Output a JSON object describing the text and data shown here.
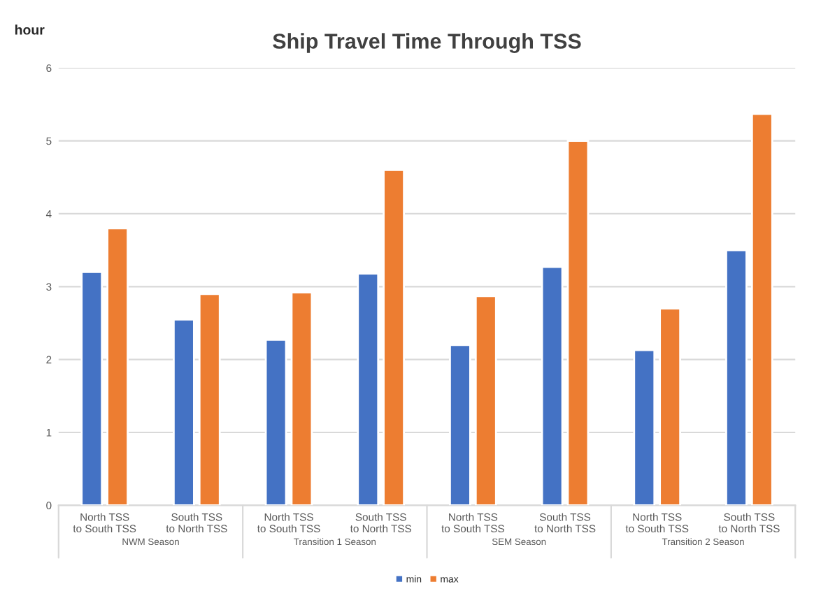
{
  "chart_data": {
    "type": "bar",
    "title": "Ship Travel Time Through TSS",
    "ylabel": "hour",
    "categories": [
      "North TSS to South TSS",
      "South TSS to North TSS",
      "North TSS to South TSS",
      "South TSS to North TSS",
      "North TSS to South TSS",
      "South TSS to North TSS",
      "North TSS to South TSS",
      "South TSS to North TSS"
    ],
    "series": [
      {
        "name": "min",
        "color": "#4472c4",
        "values": [
          3.2,
          2.55,
          2.27,
          3.18,
          2.2,
          3.27,
          2.13,
          3.5
        ]
      },
      {
        "name": "max",
        "color": "#ed7d31",
        "values": [
          3.8,
          2.9,
          2.92,
          4.6,
          2.87,
          5.0,
          2.7,
          5.37
        ]
      }
    ],
    "annotations": [
      "NWM Season",
      "Transition 1 Season",
      "SEM Season",
      "Transition 2 Season"
    ],
    "ylim": [
      0,
      6
    ],
    "yticks": [
      0,
      1,
      2,
      3,
      4,
      5,
      6
    ],
    "grid": "y",
    "legend": "bottom"
  }
}
